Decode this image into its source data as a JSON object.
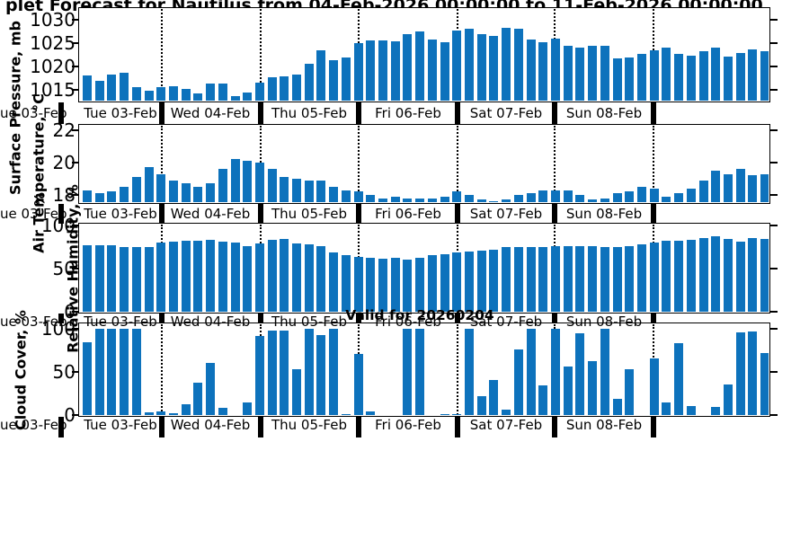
{
  "title": {
    "visible_text": "plet Forecast for Nautilus from 04-Feb-2026 00:00:00 to 11-Feb-2026 00:00:00"
  },
  "annotation": {
    "valid_label": "Valid for 20260204"
  },
  "colors": {
    "bar_blue": "#0d72bc",
    "axis": "#000000",
    "background": "#ffffff"
  },
  "x_axis": {
    "day_labels": [
      "Tue 03-Feb",
      "Wed 04-Feb",
      "Thu 05-Feb",
      "Fri 06-Feb",
      "Sat 07-Feb",
      "Sun 08-Feb"
    ],
    "last_segment_label": "",
    "left_crop_fragment": "ue 03-Feb",
    "percent_fragment": "%",
    "time_step_hours": 3
  },
  "chart_data": [
    {
      "type": "bar",
      "ylabel": "Surface Pressure, mb",
      "yticks": [
        1015,
        1020,
        1025,
        1030
      ],
      "ylim": [
        1012.7,
        1032.3
      ],
      "legend": "none",
      "grid": "vertical dotted at day boundaries",
      "values": [
        1018.1,
        1017.0,
        1018.2,
        1018.7,
        1015.6,
        1014.8,
        1015.5,
        1015.7,
        1015.1,
        1014.3,
        1016.4,
        1016.4,
        1013.7,
        1014.5,
        1016.6,
        1017.7,
        1017.9,
        1018.3,
        1020.5,
        1023.4,
        1021.4,
        1022.0,
        1025.0,
        1025.5,
        1025.5,
        1025.3,
        1026.9,
        1027.5,
        1025.8,
        1025.2,
        1027.6,
        1028.1,
        1027.0,
        1026.5,
        1028.3,
        1028.0,
        1025.8,
        1025.2,
        1025.9,
        1024.4,
        1024.0,
        1024.4,
        1024.5,
        1021.8,
        1021.9,
        1022.7,
        1023.5,
        1024.1,
        1022.6,
        1022.3,
        1023.2,
        1024.0,
        1022.2,
        1022.9,
        1023.7,
        1023.2
      ]
    },
    {
      "type": "bar",
      "ylabel": "Air Temperature, °C",
      "yticks": [
        18,
        20,
        22
      ],
      "ylim": [
        17.55,
        22.3
      ],
      "legend": "none",
      "grid": "vertical dotted at day boundaries",
      "values": [
        18.3,
        18.1,
        18.2,
        18.5,
        19.1,
        19.7,
        19.3,
        18.9,
        18.7,
        18.5,
        18.7,
        19.6,
        20.2,
        20.1,
        20.0,
        19.6,
        19.1,
        19.0,
        18.9,
        18.9,
        18.5,
        18.3,
        18.2,
        18.0,
        17.8,
        17.9,
        17.8,
        17.8,
        17.8,
        17.9,
        18.2,
        18.0,
        17.7,
        17.6,
        17.7,
        18.0,
        18.1,
        18.3,
        18.3,
        18.3,
        18.0,
        17.7,
        17.8,
        18.1,
        18.2,
        18.5,
        18.4,
        17.9,
        18.1,
        18.4,
        18.9,
        19.5,
        19.3,
        19.6,
        19.2,
        19.3
      ]
    },
    {
      "type": "bar",
      "ylabel": "Relative Humidity, %",
      "yticks": [
        0,
        50,
        100
      ],
      "ylim": [
        0,
        101.5
      ],
      "legend": "none",
      "grid": "vertical dotted at day boundaries",
      "values": [
        77,
        77,
        77,
        75.5,
        75,
        74.5,
        80,
        81.5,
        82,
        82,
        83.5,
        81.5,
        80.5,
        76,
        79.5,
        83.5,
        84,
        79.5,
        78,
        76,
        69,
        66,
        64,
        62,
        61,
        62,
        60.5,
        62,
        66,
        67,
        68.5,
        70,
        70.5,
        71.5,
        74.5,
        75,
        75,
        74.5,
        76,
        76,
        76,
        76,
        75.5,
        74.5,
        76,
        78,
        80,
        82,
        82.5,
        83.5,
        85.5,
        88,
        84,
        81,
        85,
        84
      ]
    },
    {
      "type": "bar",
      "ylabel": "Cloud Cover, %",
      "yticks": [
        0,
        50,
        100
      ],
      "ylim": [
        0,
        105
      ],
      "legend": "none",
      "grid": "vertical dotted at day boundaries",
      "values": [
        84,
        100,
        100,
        100,
        100,
        3,
        4,
        2,
        13,
        37,
        60,
        8,
        0,
        15,
        92,
        98,
        98,
        53,
        100,
        93,
        100,
        1,
        71,
        4,
        0,
        0,
        100,
        100,
        0,
        1,
        1,
        100,
        22,
        41,
        6,
        76,
        100,
        34,
        100,
        56,
        95,
        62,
        100,
        19,
        53,
        0,
        66,
        15,
        83,
        10,
        0,
        9,
        35,
        96,
        97,
        72
      ]
    }
  ]
}
